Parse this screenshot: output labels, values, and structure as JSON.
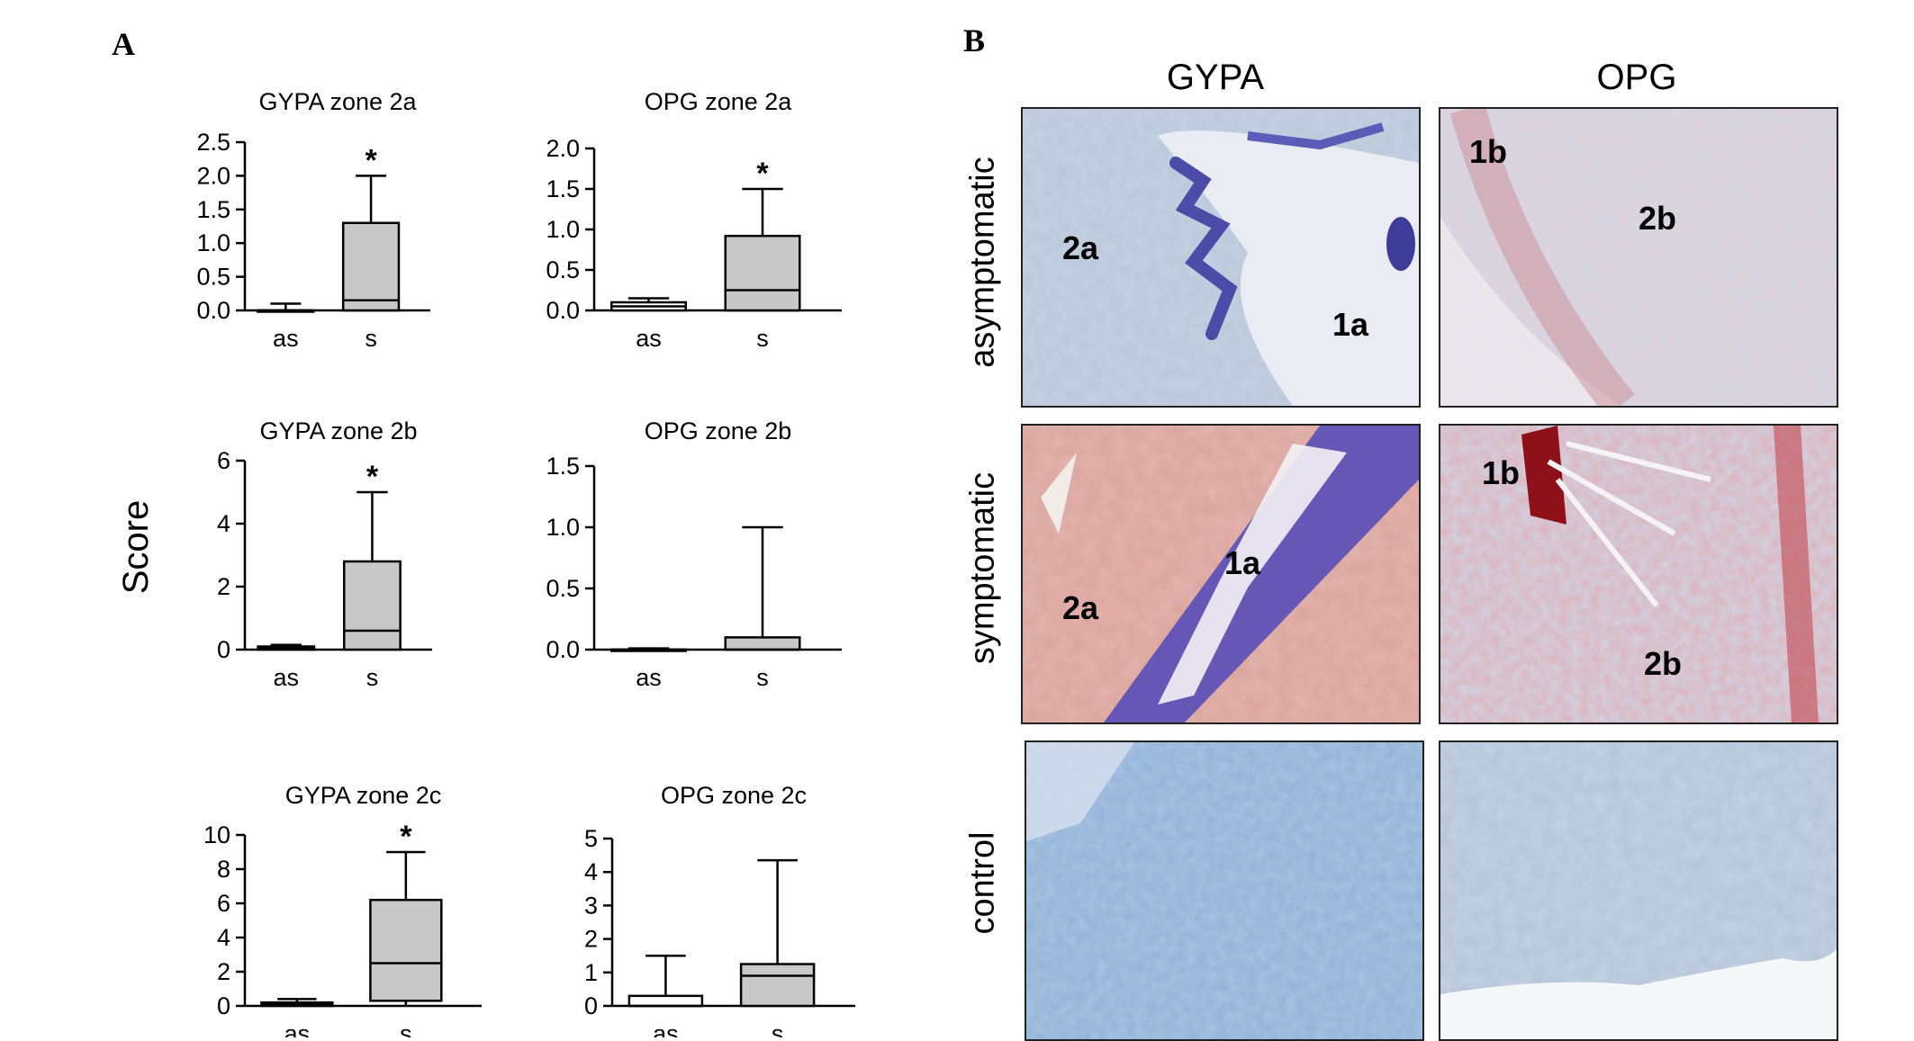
{
  "panels": {
    "a_label": "A",
    "b_label": "B"
  },
  "chart_data": [
    {
      "id": "c0",
      "type": "box",
      "title": "GYPA zone 2a",
      "categories": [
        "as",
        "s"
      ],
      "ylim": [
        0,
        2.5
      ],
      "yticks": [
        "0.0",
        "0.5",
        "1.0",
        "1.5",
        "2.0",
        "2.5"
      ],
      "boxes": [
        {
          "min": 0,
          "q1": 0,
          "median": 0,
          "q3": 0,
          "max": 0.1,
          "fill": "#ffffff"
        },
        {
          "min": 0,
          "q1": 0,
          "median": 0.15,
          "q3": 1.3,
          "max": 2.0,
          "fill": "#c8c8c8",
          "star": "*"
        }
      ]
    },
    {
      "id": "c1",
      "type": "box",
      "title": "OPG zone 2a",
      "categories": [
        "as",
        "s"
      ],
      "ylim": [
        0,
        2.0
      ],
      "yticks": [
        "0.0",
        "0.5",
        "1.0",
        "1.5",
        "2.0"
      ],
      "boxes": [
        {
          "min": 0,
          "q1": 0,
          "median": 0.05,
          "q3": 0.1,
          "max": 0.15,
          "fill": "#ffffff"
        },
        {
          "min": 0,
          "q1": 0,
          "median": 0.25,
          "q3": 0.92,
          "max": 1.5,
          "fill": "#c8c8c8",
          "star": "*"
        }
      ]
    },
    {
      "id": "c2",
      "type": "box",
      "title": "GYPA zone 2b",
      "categories": [
        "as",
        "s"
      ],
      "ylim": [
        0,
        6
      ],
      "yticks": [
        "0",
        "2",
        "4",
        "6"
      ],
      "boxes": [
        {
          "min": 0,
          "q1": 0,
          "median": 0.05,
          "q3": 0.1,
          "max": 0.15,
          "fill": "#ffffff"
        },
        {
          "min": 0,
          "q1": 0,
          "median": 0.6,
          "q3": 2.8,
          "max": 5.0,
          "fill": "#c8c8c8",
          "star": "*"
        }
      ]
    },
    {
      "id": "c3",
      "type": "box",
      "title": "OPG zone 2b",
      "categories": [
        "as",
        "s"
      ],
      "ylim": [
        0,
        1.5
      ],
      "yticks": [
        "0.0",
        "0.5",
        "1.0",
        "1.5"
      ],
      "boxes": [
        {
          "min": 0,
          "q1": 0,
          "median": 0,
          "q3": 0,
          "max": 0.01,
          "fill": "#ffffff"
        },
        {
          "min": 0,
          "q1": 0,
          "median": 0,
          "q3": 0.1,
          "max": 1.0,
          "fill": "#c8c8c8"
        }
      ]
    },
    {
      "id": "c4",
      "type": "box",
      "title": "GYPA zone 2c",
      "categories": [
        "as",
        "s"
      ],
      "ylim": [
        0,
        10
      ],
      "yticks": [
        "0",
        "2",
        "4",
        "6",
        "8",
        "10"
      ],
      "boxes": [
        {
          "min": 0,
          "q1": 0,
          "median": 0.1,
          "q3": 0.2,
          "max": 0.4,
          "fill": "#ffffff"
        },
        {
          "min": 0,
          "q1": 0.3,
          "median": 2.5,
          "q3": 6.2,
          "max": 9.0,
          "fill": "#c8c8c8",
          "star": "*"
        }
      ]
    },
    {
      "id": "c5",
      "type": "box",
      "title": "OPG zone 2c",
      "categories": [
        "as",
        "s"
      ],
      "ylim": [
        0,
        5
      ],
      "yticks": [
        "0",
        "1",
        "2",
        "3",
        "4",
        "5"
      ],
      "boxes": [
        {
          "min": 0,
          "q1": 0,
          "median": 0,
          "q3": 0.3,
          "max": 1.5,
          "fill": "#ffffff"
        },
        {
          "min": 0,
          "q1": 0,
          "median": 0.9,
          "q3": 1.25,
          "max": 4.35,
          "fill": "#c8c8c8"
        }
      ]
    }
  ],
  "score_label": "Score",
  "micrographs": {
    "columns": [
      "GYPA",
      "OPG"
    ],
    "rows": [
      "asymptomatic",
      "symptomatic",
      "control"
    ],
    "cells": [
      {
        "labels": [
          "2a",
          "1a"
        ],
        "palette": "asym-gypa"
      },
      {
        "labels": [
          "1b",
          "2b"
        ],
        "palette": "asym-opg"
      },
      {
        "labels": [
          "1a",
          "2a"
        ],
        "palette": "sym-gypa"
      },
      {
        "labels": [
          "1b",
          "2b"
        ],
        "palette": "sym-opg"
      },
      {
        "labels": [],
        "palette": "ctrl-gypa"
      },
      {
        "labels": [],
        "palette": "ctrl-opg"
      }
    ]
  }
}
